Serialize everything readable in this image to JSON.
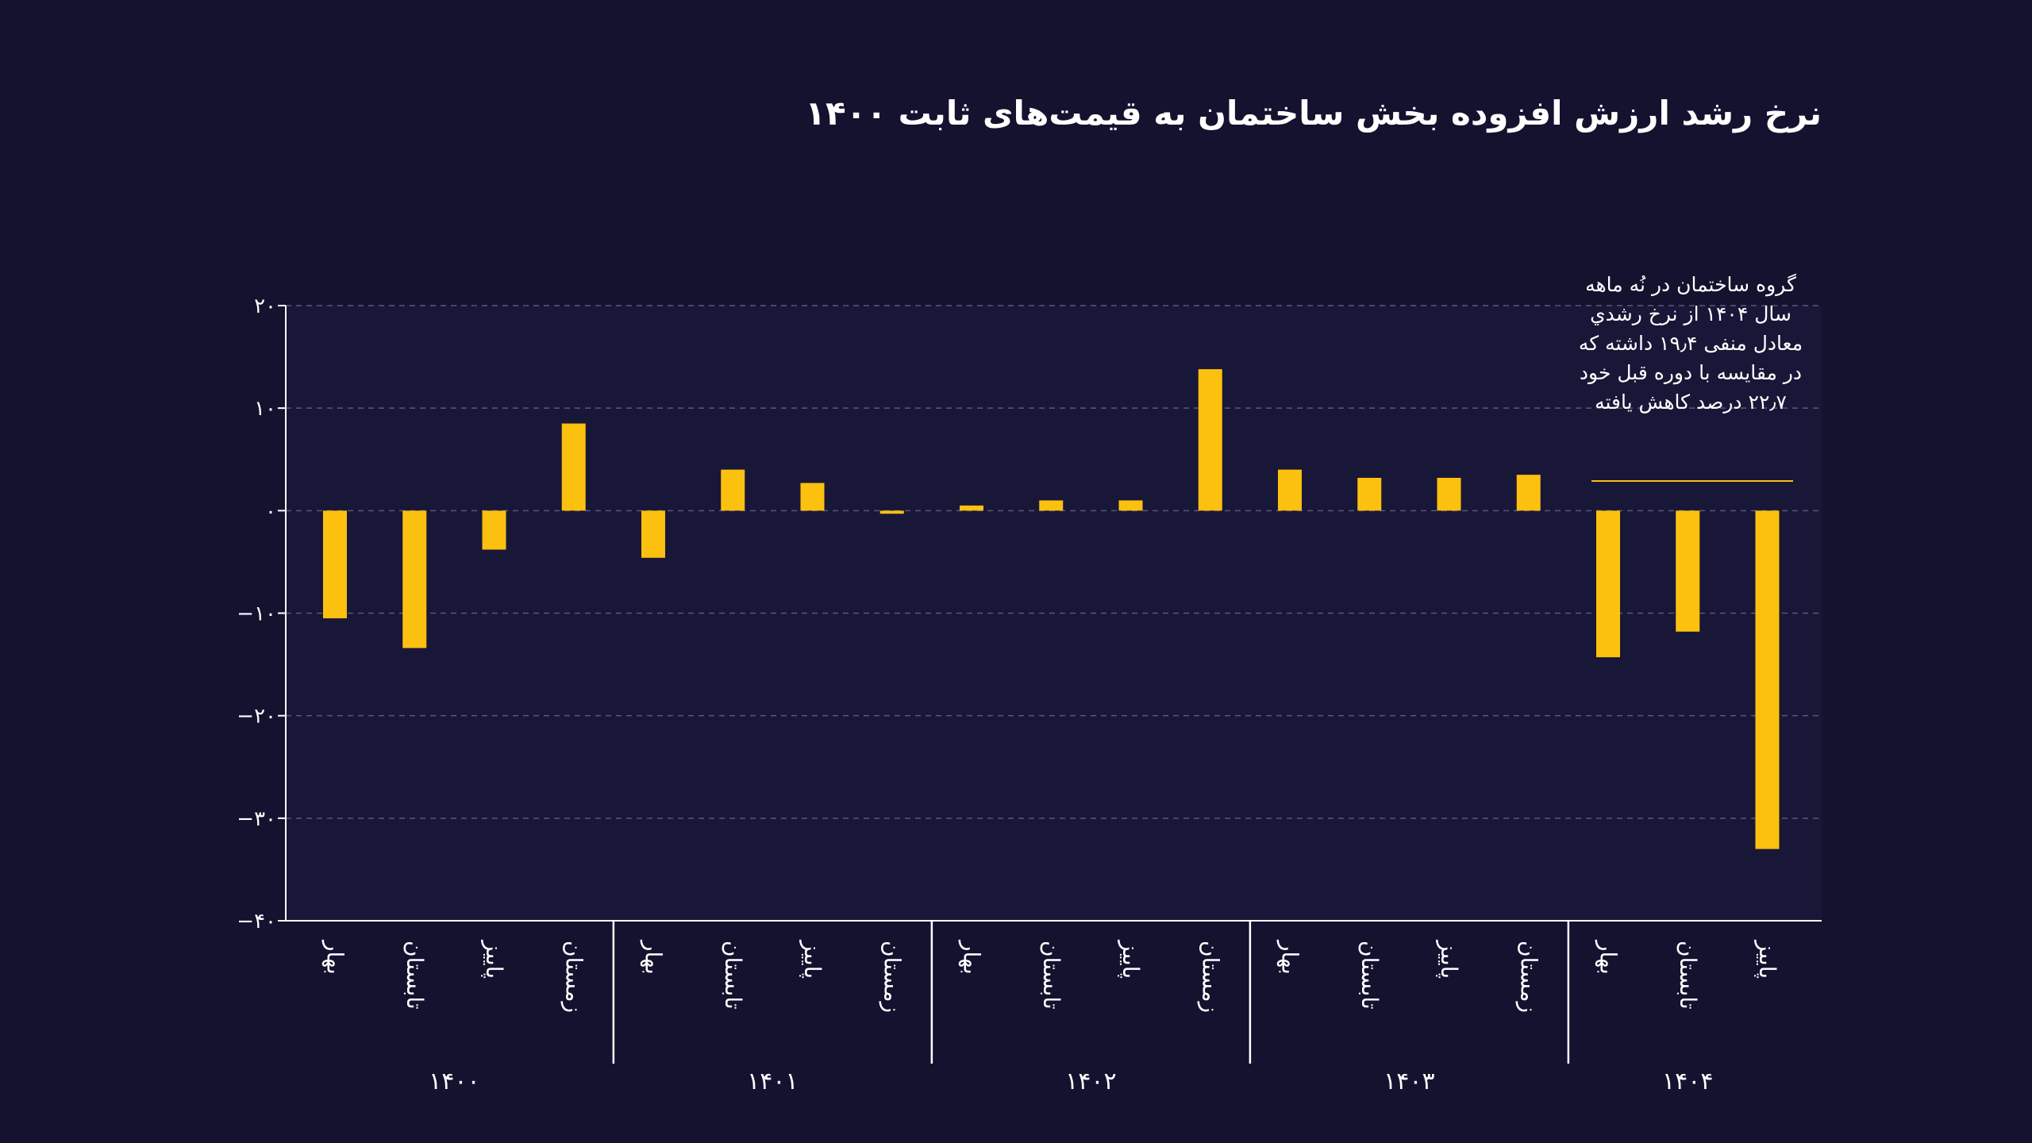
{
  "colors": {
    "background": "#14122f",
    "plot_background": "#191738",
    "bar": "#fcc00f",
    "axis": "#ffffff",
    "grid": "#5a5877",
    "text": "#ffffff"
  },
  "chart_data": {
    "type": "bar",
    "title": "نرخ رشد ارزش افزوده بخش ساختمان به قیمت‌های ثابت ۱۴۰۰",
    "xlabel": "",
    "ylabel": "",
    "ylim": [
      -40,
      20
    ],
    "yticks": [
      20,
      10,
      0,
      -10,
      -20,
      -30,
      -40
    ],
    "ytick_labels": [
      "۲۰",
      "۱۰",
      "۰",
      "−۱۰",
      "−۲۰",
      "−۳۰",
      "−۴۰"
    ],
    "grid": true,
    "groups": [
      {
        "label": "۱۴۰۰",
        "categories": [
          "بهار",
          "تابستان",
          "پاییز",
          "زمستان"
        ],
        "values": [
          -10.5,
          -13.4,
          -3.8,
          8.5
        ]
      },
      {
        "label": "۱۴۰۱",
        "categories": [
          "بهار",
          "تابستان",
          "پاییز",
          "زمستان"
        ],
        "values": [
          -4.6,
          4.0,
          2.7,
          -0.3
        ]
      },
      {
        "label": "۱۴۰۲",
        "categories": [
          "بهار",
          "تابستان",
          "پاییز",
          "زمستان"
        ],
        "values": [
          0.5,
          1.0,
          1.0,
          13.8
        ]
      },
      {
        "label": "۱۴۰۳",
        "categories": [
          "بهار",
          "تابستان",
          "پاییز",
          "زمستان"
        ],
        "values": [
          4.0,
          3.2,
          3.2,
          3.5
        ]
      },
      {
        "label": "۱۴۰۴",
        "categories": [
          "بهار",
          "تابستان",
          "پاییز"
        ],
        "values": [
          -14.3,
          -11.8,
          -33.0
        ]
      }
    ],
    "annotation": "گروه ساختمان در نُه ماهه سال ۱۴۰۴ از نرخ رشدي معادل منفی ۱۹٫۴ داشته که در مقایسه با دوره قبل خود ۲۲٫۷ درصد کاهش یافته"
  }
}
